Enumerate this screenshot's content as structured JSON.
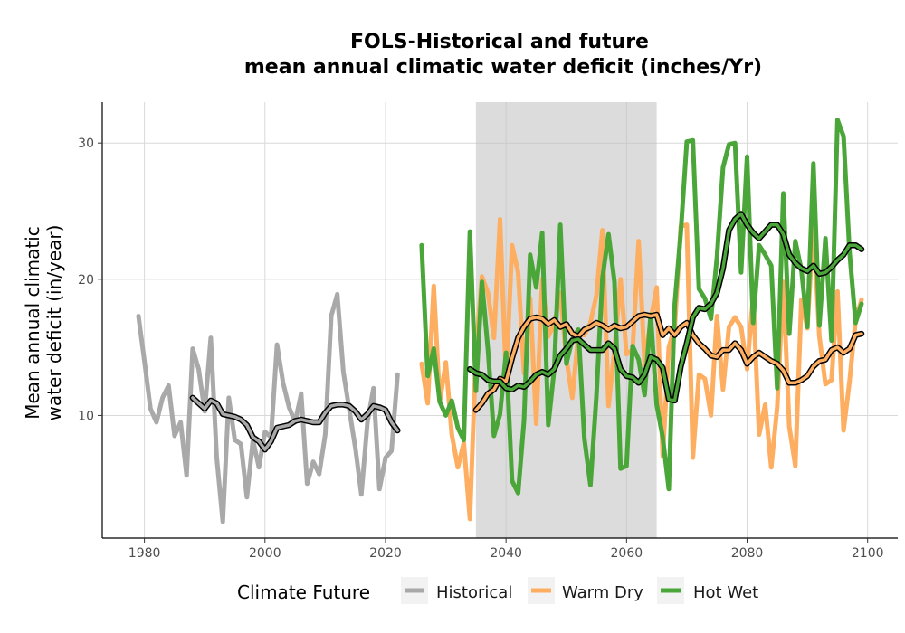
{
  "chart_data": {
    "type": "line",
    "title_line1": "FOLS-Historical and future",
    "title_line2": "mean annual climatic water deficit (inches/Yr)",
    "ylabel_line1": "Mean annual climatic",
    "ylabel_line2": "water deficit (in/year)",
    "xlabel": "",
    "xlim": [
      1973,
      2105
    ],
    "ylim": [
      1,
      33
    ],
    "xticks": [
      1980,
      2000,
      2020,
      2040,
      2060,
      2080,
      2100
    ],
    "yticks": [
      10,
      20,
      30
    ],
    "grid": true,
    "shaded_period": [
      2035,
      2065
    ],
    "legend": {
      "title": "Climate Future",
      "position": "bottom",
      "entries": [
        {
          "label": "Historical",
          "color": "#a9a9a9"
        },
        {
          "label": "Warm Dry",
          "color": "#fdae61"
        },
        {
          "label": "Hot Wet",
          "color": "#4aa638"
        }
      ]
    },
    "series": [
      {
        "name": "Historical",
        "color": "#a9a9a9",
        "x": [
          1979,
          1980,
          1981,
          1982,
          1983,
          1984,
          1985,
          1986,
          1987,
          1988,
          1989,
          1990,
          1991,
          1992,
          1993,
          1994,
          1995,
          1996,
          1997,
          1998,
          1999,
          2000,
          2001,
          2002,
          2003,
          2004,
          2005,
          2006,
          2007,
          2008,
          2009,
          2010,
          2011,
          2012,
          2013,
          2014,
          2015,
          2016,
          2017,
          2018,
          2019,
          2020,
          2021,
          2022
        ],
        "y": [
          17.3,
          14.0,
          10.5,
          9.5,
          11.3,
          12.2,
          8.5,
          9.5,
          5.6,
          14.9,
          13.4,
          10.3,
          15.7,
          6.9,
          2.2,
          11.3,
          8.2,
          7.9,
          4.0,
          8.2,
          6.2,
          8.8,
          8.4,
          15.2,
          12.4,
          10.6,
          9.5,
          11.6,
          5.0,
          6.6,
          5.7,
          8.6,
          17.3,
          18.9,
          13.2,
          10.4,
          7.6,
          4.2,
          9.5,
          12.0,
          4.6,
          6.9,
          7.4,
          13.0
        ]
      },
      {
        "name": "",
        "role": "historical-rolling-mean",
        "color": "#a9a9a9",
        "x": [
          1988,
          1989,
          1990,
          1991,
          1992,
          1993,
          1994,
          1995,
          1996,
          1997,
          1998,
          1999,
          2000,
          2001,
          2002,
          2003,
          2004,
          2005,
          2006,
          2007,
          2008,
          2009,
          2010,
          2011,
          2012,
          2013,
          2014,
          2015,
          2016,
          2017,
          2018,
          2019,
          2020,
          2021,
          2022
        ],
        "y": [
          11.3,
          10.9,
          10.5,
          11.1,
          10.9,
          10.1,
          10.0,
          9.9,
          9.7,
          9.3,
          8.4,
          8.1,
          7.5,
          8.1,
          9.1,
          9.2,
          9.3,
          9.6,
          9.7,
          9.6,
          9.5,
          9.5,
          10.2,
          10.7,
          10.8,
          10.8,
          10.7,
          10.3,
          9.7,
          10.1,
          10.7,
          10.6,
          10.4,
          9.5,
          8.9
        ]
      },
      {
        "name": "Warm Dry",
        "color": "#fdae61",
        "x": [
          2026,
          2027,
          2028,
          2029,
          2030,
          2031,
          2032,
          2033,
          2034,
          2035,
          2036,
          2037,
          2038,
          2039,
          2040,
          2041,
          2042,
          2043,
          2044,
          2045,
          2046,
          2047,
          2048,
          2049,
          2050,
          2051,
          2052,
          2053,
          2054,
          2055,
          2056,
          2057,
          2058,
          2059,
          2060,
          2061,
          2062,
          2063,
          2064,
          2065,
          2066,
          2067,
          2068,
          2069,
          2070,
          2071,
          2072,
          2073,
          2074,
          2075,
          2076,
          2077,
          2078,
          2079,
          2080,
          2081,
          2082,
          2083,
          2084,
          2085,
          2086,
          2087,
          2088,
          2089,
          2090,
          2091,
          2092,
          2093,
          2094,
          2095,
          2096,
          2097,
          2098,
          2099
        ],
        "y": [
          13.8,
          10.9,
          19.5,
          11.0,
          13.9,
          8.6,
          6.2,
          8.0,
          2.4,
          14.7,
          20.2,
          19.0,
          15.7,
          24.4,
          12.6,
          22.5,
          20.5,
          13.1,
          18.6,
          9.4,
          20.0,
          15.8,
          16.7,
          19.0,
          14.2,
          11.3,
          16.0,
          15.9,
          16.8,
          18.8,
          23.6,
          10.7,
          14.8,
          20.0,
          14.5,
          14.8,
          22.8,
          13.7,
          17.0,
          19.4,
          7.0,
          15.0,
          16.5,
          23.9,
          24.0,
          6.9,
          13.0,
          12.7,
          10.0,
          17.3,
          11.9,
          16.5,
          17.2,
          16.5,
          13.4,
          18.8,
          8.6,
          10.8,
          6.2,
          10.6,
          19.8,
          9.2,
          6.3,
          18.5,
          16.4,
          24.0,
          15.8,
          12.3,
          12.6,
          19.1,
          8.9,
          12.5,
          17.0,
          18.5
        ]
      },
      {
        "name": "",
        "role": "warm-dry-rolling-mean",
        "color": "#fdae61",
        "x": [
          2035,
          2036,
          2037,
          2038,
          2039,
          2040,
          2041,
          2042,
          2043,
          2044,
          2045,
          2046,
          2047,
          2048,
          2049,
          2050,
          2051,
          2052,
          2053,
          2054,
          2055,
          2056,
          2057,
          2058,
          2059,
          2060,
          2061,
          2062,
          2063,
          2064,
          2065,
          2066,
          2067,
          2068,
          2069,
          2070,
          2071,
          2072,
          2073,
          2074,
          2075,
          2076,
          2077,
          2078,
          2079,
          2080,
          2081,
          2082,
          2083,
          2084,
          2085,
          2086,
          2087,
          2088,
          2089,
          2090,
          2091,
          2092,
          2093,
          2094,
          2095,
          2096,
          2097,
          2098,
          2099
        ],
        "y": [
          10.4,
          10.9,
          11.6,
          11.9,
          12.7,
          12.5,
          14.2,
          15.7,
          16.5,
          17.1,
          17.2,
          17.1,
          16.7,
          17.0,
          16.5,
          16.7,
          16.0,
          15.8,
          16.3,
          16.5,
          16.8,
          16.6,
          16.3,
          16.6,
          16.4,
          16.5,
          16.9,
          17.3,
          17.4,
          17.3,
          17.4,
          15.9,
          16.4,
          15.9,
          16.5,
          16.8,
          15.9,
          15.3,
          14.9,
          14.4,
          14.3,
          14.8,
          14.8,
          15.3,
          14.8,
          13.8,
          14.3,
          14.6,
          14.3,
          14.0,
          13.8,
          13.3,
          12.4,
          12.4,
          12.6,
          12.9,
          13.6,
          14.0,
          14.1,
          14.8,
          15.0,
          14.6,
          14.9,
          15.9,
          16.0
        ]
      },
      {
        "name": "Hot Wet",
        "color": "#4aa638",
        "x": [
          2026,
          2027,
          2028,
          2029,
          2030,
          2031,
          2032,
          2033,
          2034,
          2035,
          2036,
          2037,
          2038,
          2039,
          2040,
          2041,
          2042,
          2043,
          2044,
          2045,
          2046,
          2047,
          2048,
          2049,
          2050,
          2051,
          2052,
          2053,
          2054,
          2055,
          2056,
          2057,
          2058,
          2059,
          2060,
          2061,
          2062,
          2063,
          2064,
          2065,
          2066,
          2067,
          2068,
          2069,
          2070,
          2071,
          2072,
          2073,
          2074,
          2075,
          2076,
          2077,
          2078,
          2079,
          2080,
          2081,
          2082,
          2083,
          2084,
          2085,
          2086,
          2087,
          2088,
          2089,
          2090,
          2091,
          2092,
          2093,
          2094,
          2095,
          2096,
          2097,
          2098,
          2099
        ],
        "y": [
          22.5,
          12.9,
          14.9,
          11.0,
          10.0,
          11.1,
          9.1,
          8.2,
          23.5,
          11.8,
          19.8,
          14.8,
          8.5,
          10.1,
          14.6,
          5.2,
          4.3,
          9.7,
          21.8,
          19.4,
          23.4,
          9.3,
          13.4,
          24.0,
          13.8,
          15.6,
          16.3,
          8.3,
          4.9,
          11.4,
          20.1,
          23.3,
          19.8,
          6.1,
          6.3,
          15.1,
          14.1,
          11.5,
          17.4,
          10.8,
          8.4,
          4.6,
          18.2,
          23.5,
          30.1,
          30.2,
          19.3,
          18.6,
          17.1,
          21.6,
          28.2,
          29.9,
          30.0,
          20.5,
          29.0,
          16.8,
          22.5,
          21.8,
          21.0,
          12.0,
          26.3,
          16.0,
          22.8,
          20.7,
          16.5,
          28.5,
          16.6,
          23.0,
          15.5,
          31.7,
          30.5,
          22.0,
          16.8,
          18.2
        ]
      },
      {
        "name": "",
        "role": "hot-wet-rolling-mean",
        "color": "#4aa638",
        "x": [
          2034,
          2035,
          2036,
          2037,
          2038,
          2039,
          2040,
          2041,
          2042,
          2043,
          2044,
          2045,
          2046,
          2047,
          2048,
          2049,
          2050,
          2051,
          2052,
          2053,
          2054,
          2055,
          2056,
          2057,
          2058,
          2059,
          2060,
          2061,
          2062,
          2063,
          2064,
          2065,
          2066,
          2067,
          2068,
          2069,
          2070,
          2071,
          2072,
          2073,
          2074,
          2075,
          2076,
          2077,
          2078,
          2079,
          2080,
          2081,
          2082,
          2083,
          2084,
          2085,
          2086,
          2087,
          2088,
          2089,
          2090,
          2091,
          2092,
          2093,
          2094,
          2095,
          2096,
          2097,
          2098,
          2099
        ],
        "y": [
          13.4,
          13.1,
          13.0,
          12.6,
          12.5,
          12.5,
          12.0,
          11.9,
          12.2,
          12.1,
          12.5,
          13.0,
          13.2,
          13.0,
          13.4,
          14.4,
          14.9,
          15.5,
          15.6,
          15.2,
          14.8,
          14.8,
          14.8,
          15.3,
          14.9,
          13.4,
          12.9,
          12.8,
          12.4,
          13.0,
          14.3,
          14.1,
          13.5,
          11.2,
          11.1,
          13.6,
          15.3,
          17.2,
          17.9,
          17.8,
          18.2,
          19.0,
          20.8,
          23.6,
          24.4,
          24.8,
          24.0,
          23.4,
          23.0,
          23.5,
          24.0,
          24.0,
          23.3,
          21.8,
          21.2,
          20.8,
          20.6,
          21.0,
          20.4,
          20.5,
          20.9,
          21.4,
          21.8,
          22.5,
          22.5,
          22.2
        ]
      }
    ]
  }
}
